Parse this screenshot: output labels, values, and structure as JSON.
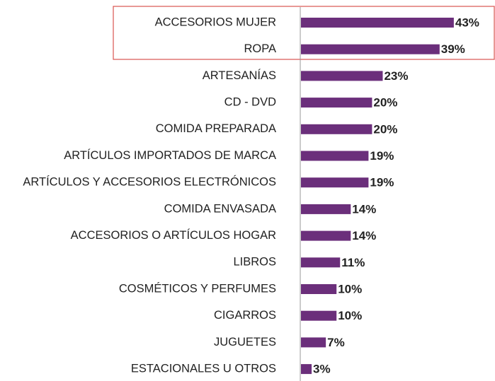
{
  "chart_data": {
    "type": "bar",
    "orientation": "horizontal",
    "categories": [
      "ACCESORIOS MUJER",
      "ROPA",
      "ARTESANÍAS",
      "CD - DVD",
      "COMIDA PREPARADA",
      "ARTÍCULOS IMPORTADOS DE MARCA",
      "ARTÍCULOS Y ACCESORIOS ELECTRÓNICOS",
      "COMIDA ENVASADA",
      "ACCESORIOS O ARTÍCULOS HOGAR",
      "LIBROS",
      "COSMÉTICOS Y PERFUMES",
      "CIGARROS",
      "JUGUETES",
      "ESTACIONALES U OTROS"
    ],
    "values": [
      43,
      39,
      23,
      20,
      20,
      19,
      19,
      14,
      14,
      11,
      10,
      10,
      7,
      3
    ],
    "value_labels": [
      "43%",
      "39%",
      "23%",
      "20%",
      "20%",
      "19%",
      "19%",
      "14%",
      "14%",
      "11%",
      "10%",
      "10%",
      "7%",
      "3%"
    ],
    "color": "#6b2f7b"
  }
}
